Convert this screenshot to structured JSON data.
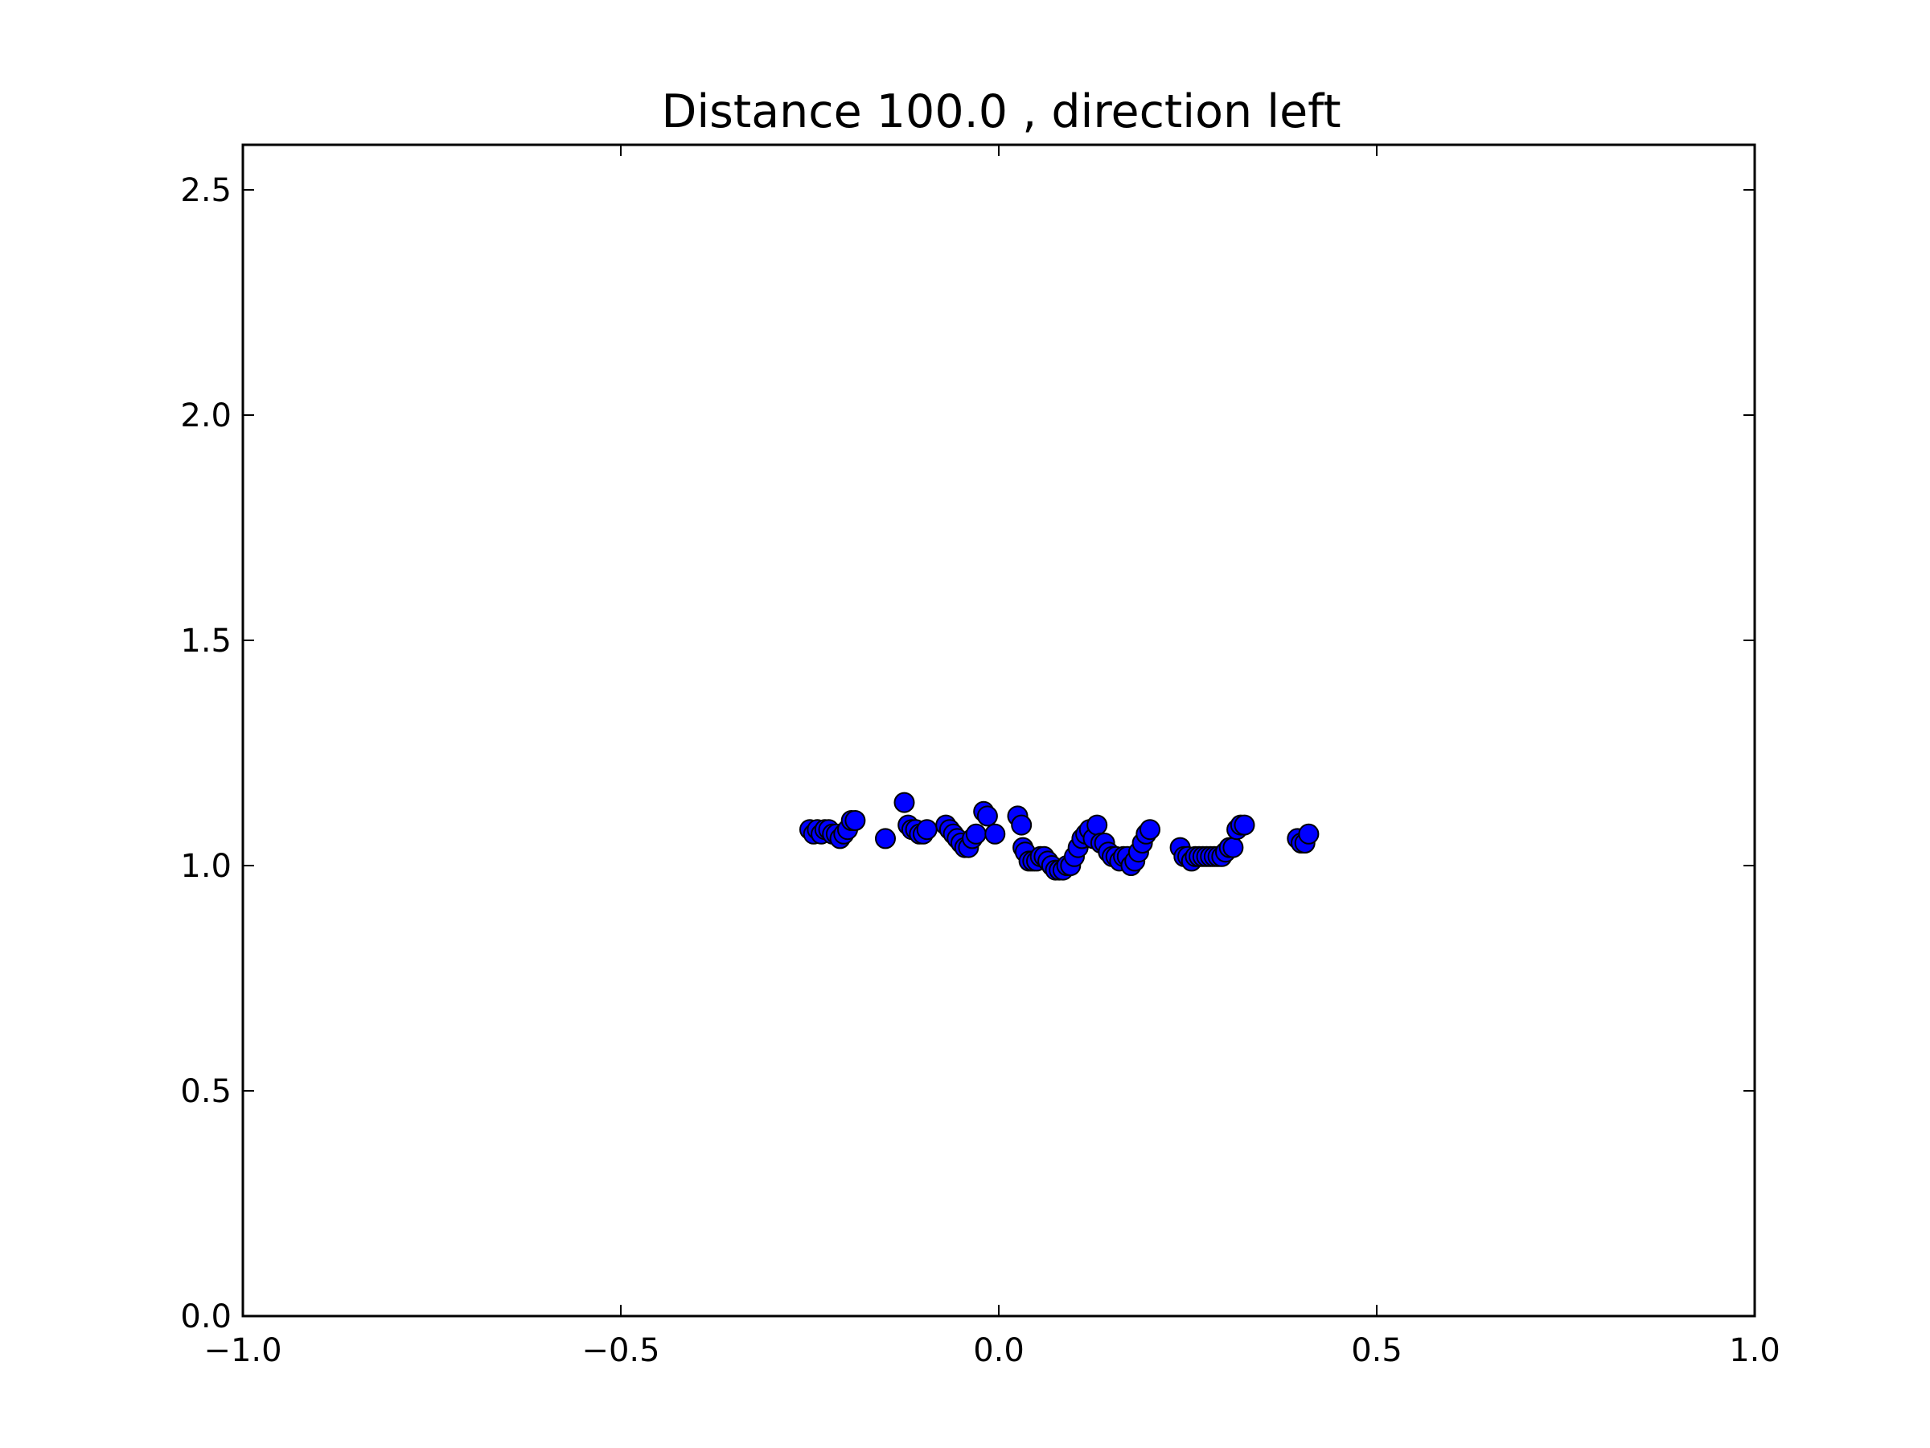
{
  "chart_data": {
    "type": "scatter",
    "title": "Distance 100.0 , direction left",
    "xlabel": "",
    "ylabel": "",
    "xlim": [
      -1.0,
      1.0
    ],
    "ylim": [
      0.0,
      2.6
    ],
    "xticks": [
      -1.0,
      -0.5,
      0.0,
      0.5,
      1.0
    ],
    "xtick_labels": [
      "−1.0",
      "−0.5",
      "0.0",
      "0.5",
      "1.0"
    ],
    "yticks": [
      0.0,
      0.5,
      1.0,
      1.5,
      2.0,
      2.5
    ],
    "ytick_labels": [
      "0.0",
      "0.5",
      "1.0",
      "1.5",
      "2.0",
      "2.5"
    ],
    "grid": false,
    "legend": "none",
    "marker_color": "#0000ff",
    "marker_edge_color": "#000000",
    "series": [
      {
        "x": [
          -0.25,
          -0.245,
          -0.24,
          -0.235,
          -0.23,
          -0.225,
          -0.22,
          -0.215,
          -0.21,
          -0.205,
          -0.2,
          -0.195,
          -0.19,
          -0.15,
          -0.125,
          -0.12,
          -0.115,
          -0.11,
          -0.105,
          -0.1,
          -0.095,
          -0.07,
          -0.065,
          -0.06,
          -0.055,
          -0.05,
          -0.045,
          -0.04,
          -0.035,
          -0.03,
          -0.02,
          -0.015,
          -0.005,
          0.025,
          0.03,
          0.032,
          0.035,
          0.04,
          0.045,
          0.05,
          0.055,
          0.06,
          0.065,
          0.07,
          0.075,
          0.08,
          0.085,
          0.09,
          0.095,
          0.1,
          0.105,
          0.11,
          0.115,
          0.12,
          0.125,
          0.13,
          0.135,
          0.14,
          0.145,
          0.15,
          0.155,
          0.16,
          0.165,
          0.17,
          0.175,
          0.18,
          0.185,
          0.19,
          0.195,
          0.2,
          0.24,
          0.245,
          0.25,
          0.255,
          0.26,
          0.265,
          0.27,
          0.275,
          0.28,
          0.285,
          0.29,
          0.295,
          0.3,
          0.305,
          0.31,
          0.315,
          0.32,
          0.325,
          0.395,
          0.4,
          0.405,
          0.41
        ],
        "y": [
          1.08,
          1.07,
          1.08,
          1.07,
          1.08,
          1.08,
          1.07,
          1.07,
          1.06,
          1.07,
          1.08,
          1.1,
          1.1,
          1.06,
          1.14,
          1.09,
          1.08,
          1.08,
          1.07,
          1.07,
          1.08,
          1.09,
          1.08,
          1.07,
          1.06,
          1.05,
          1.04,
          1.04,
          1.06,
          1.07,
          1.12,
          1.11,
          1.07,
          1.11,
          1.09,
          1.04,
          1.03,
          1.01,
          1.01,
          1.01,
          1.02,
          1.02,
          1.01,
          1.0,
          0.99,
          0.99,
          0.99,
          1.0,
          1.0,
          1.02,
          1.04,
          1.06,
          1.07,
          1.08,
          1.06,
          1.09,
          1.05,
          1.05,
          1.03,
          1.02,
          1.02,
          1.01,
          1.02,
          1.02,
          1.0,
          1.01,
          1.03,
          1.05,
          1.07,
          1.08,
          1.04,
          1.02,
          1.02,
          1.01,
          1.02,
          1.02,
          1.02,
          1.02,
          1.02,
          1.02,
          1.02,
          1.02,
          1.03,
          1.04,
          1.04,
          1.08,
          1.09,
          1.09,
          1.06,
          1.05,
          1.05,
          1.07
        ]
      }
    ]
  }
}
